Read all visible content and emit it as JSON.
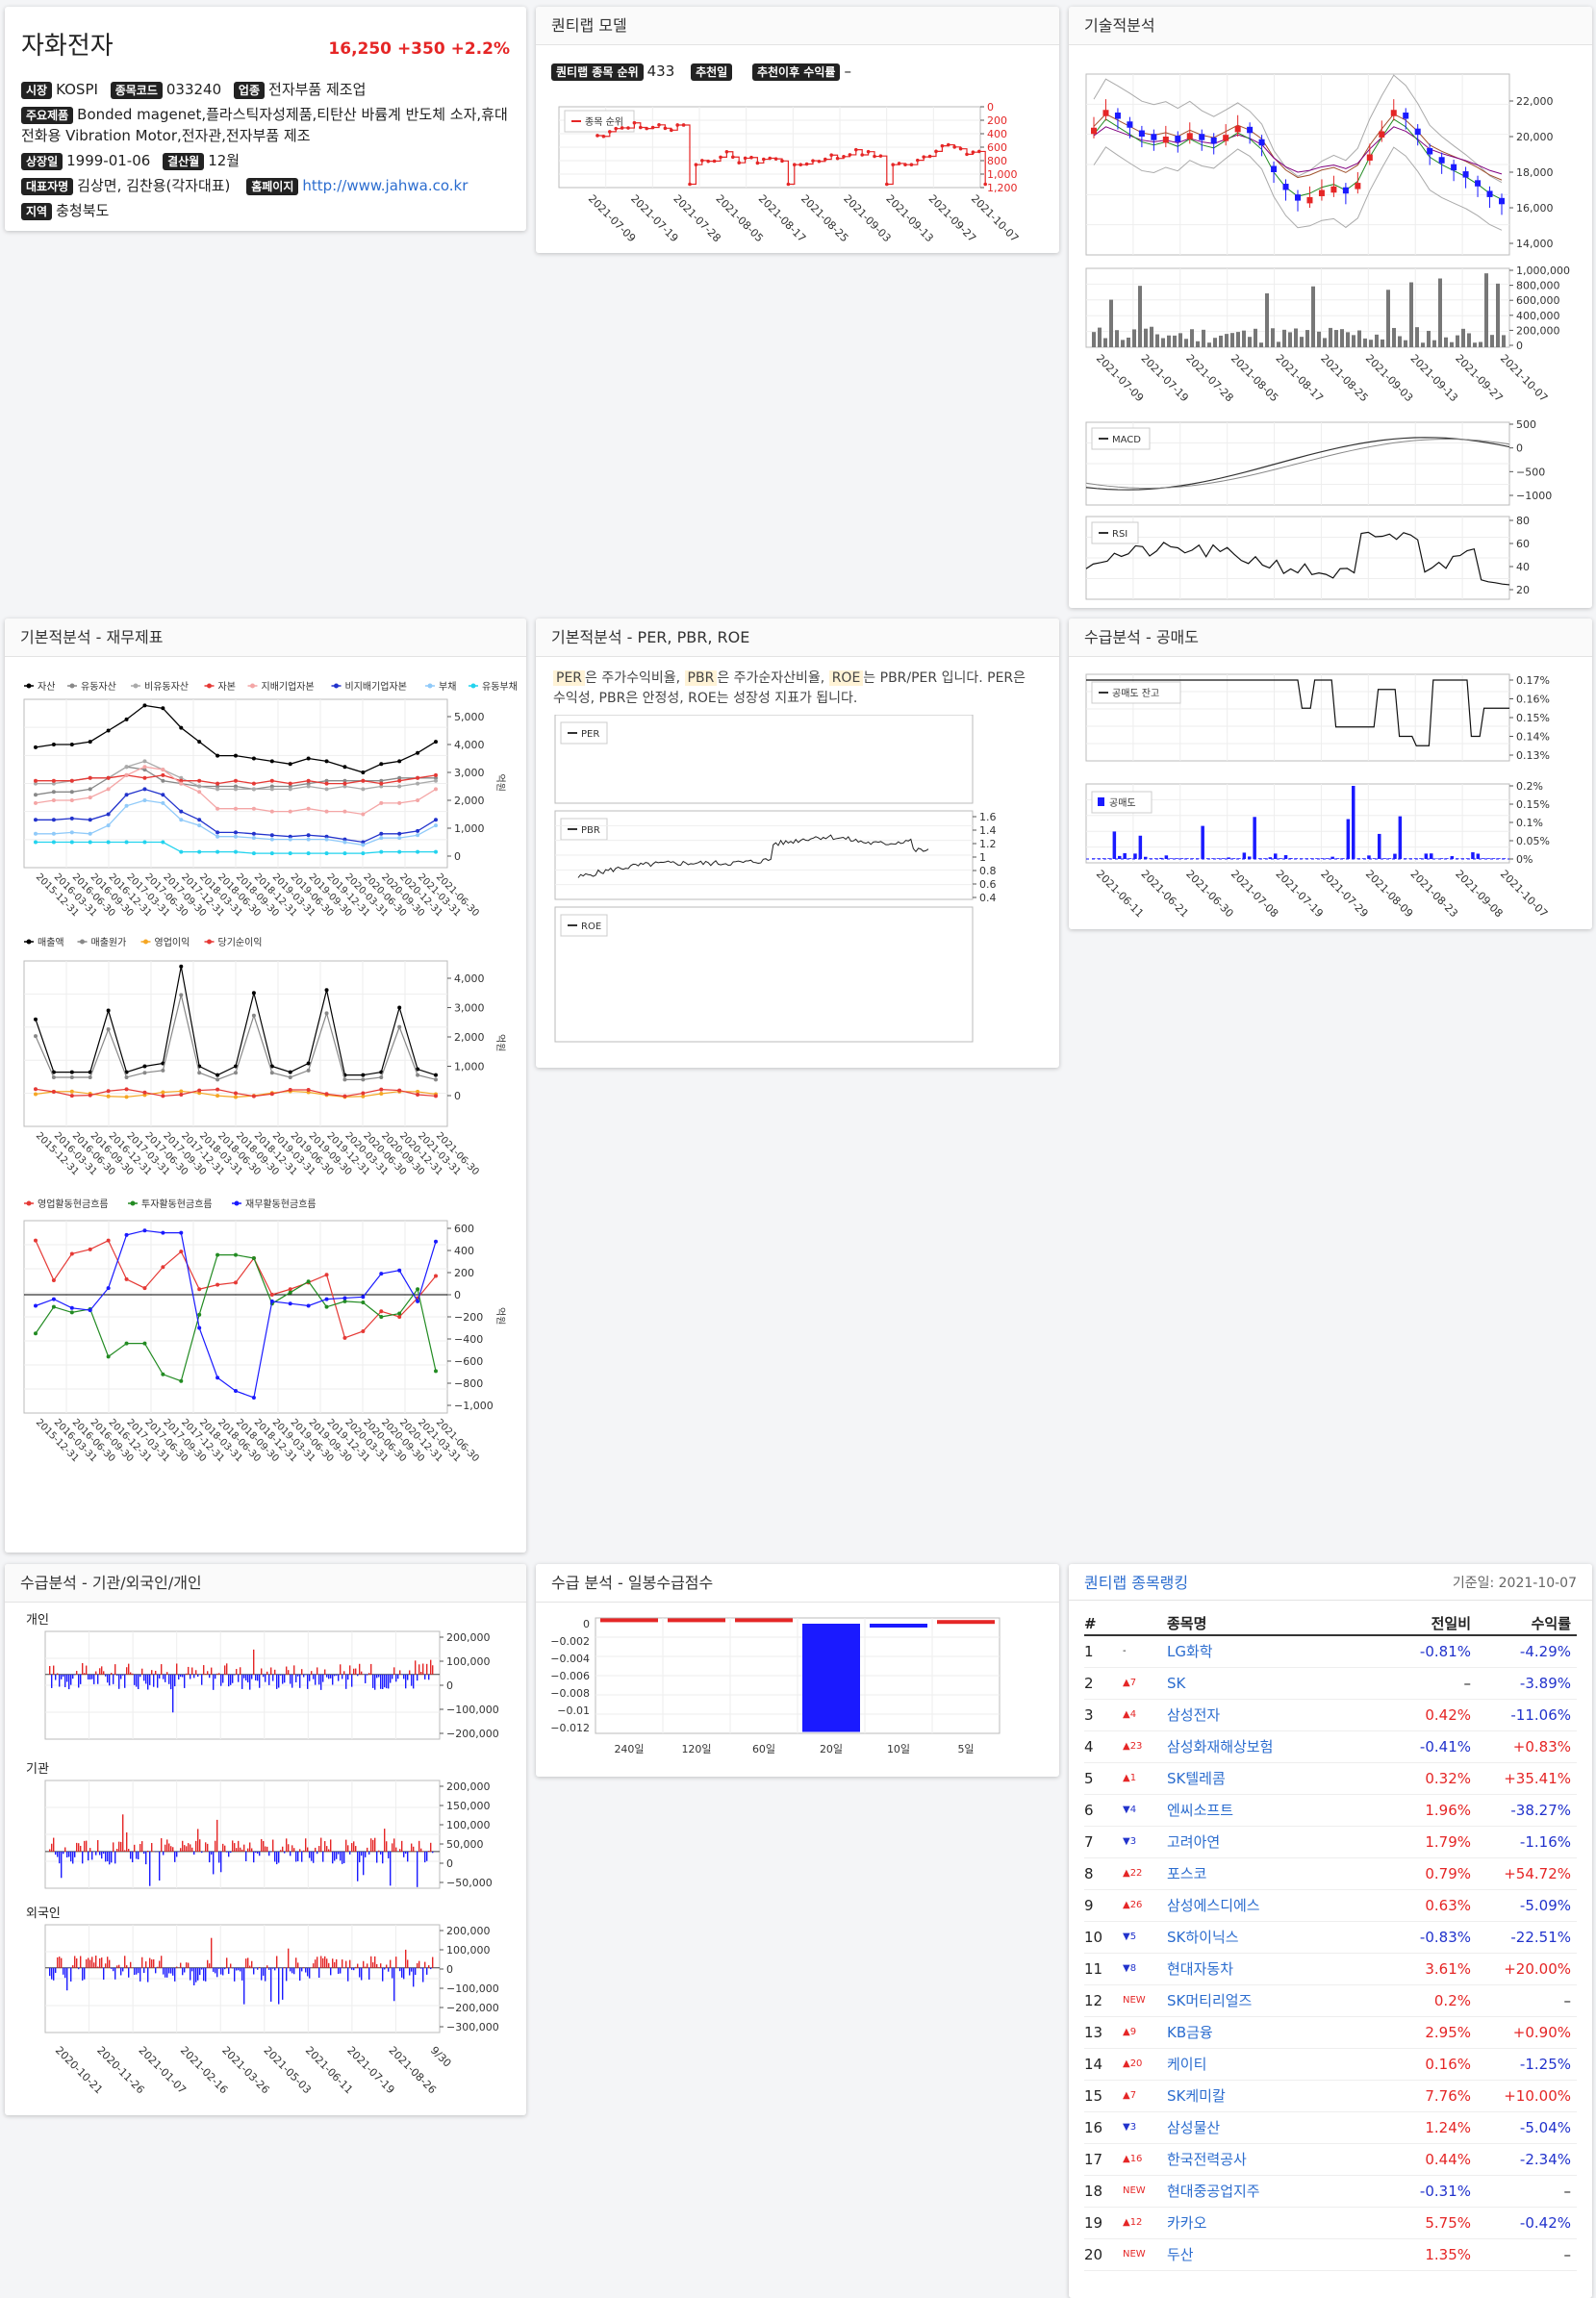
{
  "stock": {
    "name": "자화전자",
    "price": "16,250",
    "change": "+350",
    "change_pct": "+2.2%",
    "market_label": "시장",
    "market": "KOSPI",
    "code_label": "종목코드",
    "code": "033240",
    "industry_label": "업종",
    "industry": "전자부품 제조업",
    "products_label": "주요제품",
    "products": "Bonded magenet,플라스틱자성제품,티탄산 바륨계 반도체 소자,휴대전화용 Vibration Motor,전자관,전자부품 제조",
    "listed_label": "상장일",
    "listed": "1999-01-06",
    "fiscal_label": "결산월",
    "fiscal": "12월",
    "ceo_label": "대표자명",
    "ceo": "김상면, 김찬용(각자대표)",
    "homepage_label": "홈페이지",
    "homepage": "http://www.jahwa.co.kr",
    "region_label": "지역",
    "region": "충청북도"
  },
  "quant_model": {
    "title": "퀀티랩 모델",
    "rank_label": "퀀티랩 종목 순위",
    "rank": "433",
    "rec_label": "추천일",
    "rec_value": "",
    "ret_label": "추천이후 수익률",
    "ret_value": "–",
    "legend": "종목 순위",
    "y_ticks": [
      "0",
      "200",
      "400",
      "600",
      "800",
      "1,000",
      "1,200"
    ],
    "dates": [
      "2021-07-09",
      "2021-07-19",
      "2021-07-28",
      "2021-08-05",
      "2021-08-17",
      "2021-08-25",
      "2021-09-03",
      "2021-09-13",
      "2021-09-27",
      "2021-10-07"
    ]
  },
  "tech": {
    "title": "기술적분석",
    "price_ticks": [
      "22,000",
      "20,000",
      "18,000",
      "16,000",
      "14,000"
    ],
    "vol_ticks": [
      "1,000,000",
      "800,000",
      "600,000",
      "400,000",
      "200,000",
      "0"
    ],
    "dates": [
      "2021-07-09",
      "2021-07-19",
      "2021-07-28",
      "2021-08-05",
      "2021-08-17",
      "2021-08-25",
      "2021-09-03",
      "2021-09-13",
      "2021-09-27",
      "2021-10-07"
    ],
    "macd_label": "MACD",
    "macd_ticks": [
      "500",
      "0",
      "−500",
      "−1000"
    ],
    "rsi_label": "RSI",
    "rsi_ticks": [
      "80",
      "60",
      "40",
      "20"
    ]
  },
  "fin": {
    "title": "기본적분석 - 재무제표",
    "legend1": [
      "자산",
      "유동자산",
      "비유동자산",
      "자본",
      "지배기업자본",
      "비지배기업자본",
      "부채",
      "유동부채"
    ],
    "legend1_colors": [
      "#000000",
      "#888888",
      "#aaaaaa",
      "#e53935",
      "#f4a6a6",
      "#2233cc",
      "#90caf9",
      "#22d3ee"
    ],
    "ticks1": [
      "5,000",
      "4,000",
      "3,000",
      "2,000",
      "1,000",
      "0"
    ],
    "legend2": [
      "매출액",
      "매출원가",
      "영업이익",
      "당기순이익"
    ],
    "legend2_colors": [
      "#000000",
      "#888888",
      "#f5a623",
      "#e53935"
    ],
    "ticks2": [
      "4,000",
      "3,000",
      "2,000",
      "1,000",
      "0"
    ],
    "legend3": [
      "영업활동현금흐름",
      "투자활동현금흐름",
      "재무활동현금흐름"
    ],
    "legend3_colors": [
      "#e53935",
      "#228b22",
      "#1a1aff"
    ],
    "ticks3": [
      "600",
      "400",
      "200",
      "0",
      "−200",
      "−400",
      "−600",
      "−800",
      "−1,000"
    ],
    "unit": "억원",
    "dates": [
      "2015-12-31",
      "2016-03-31",
      "2016-06-30",
      "2016-09-30",
      "2016-12-31",
      "2017-03-31",
      "2017-06-30",
      "2017-09-30",
      "2017-12-31",
      "2018-03-31",
      "2018-06-30",
      "2018-09-30",
      "2018-12-31",
      "2019-03-31",
      "2019-06-30",
      "2019-09-30",
      "2019-12-31",
      "2020-03-31",
      "2020-06-30",
      "2020-09-30",
      "2020-12-31",
      "2021-03-31",
      "2021-06-30"
    ]
  },
  "per": {
    "title": "기본적분석 - PER, PBR, ROE",
    "desc": [
      "PER",
      "은 주가수익비율, ",
      "PBR",
      "은 주가순자산비율, ",
      "ROE",
      "는 PBR/PER 입니다. PER은 수익성, PBR은 안정성, ROE는 성장성 지표가 됩니다."
    ],
    "per_label": "PER",
    "pbr_label": "PBR",
    "roe_label": "ROE",
    "pbr_ticks": [
      "1.6",
      "1.4",
      "1.2",
      "1",
      "0.8",
      "0.6",
      "0.4"
    ]
  },
  "short": {
    "title": "수급분석 - 공매도",
    "balance_label": "공매도 잔고",
    "balance_ticks": [
      "0.17%",
      "0.16%",
      "0.15%",
      "0.14%",
      "0.13%"
    ],
    "sell_label": "공매도",
    "sell_ticks": [
      "0.2%",
      "0.15%",
      "0.1%",
      "0.05%",
      "0%"
    ],
    "dates": [
      "2021-06-11",
      "2021-06-21",
      "2021-06-30",
      "2021-07-08",
      "2021-07-19",
      "2021-07-29",
      "2021-08-09",
      "2021-08-23",
      "2021-09-08",
      "2021-10-07"
    ]
  },
  "flow": {
    "title": "수급분석 - 기관/외국인/개인",
    "individual": {
      "label": "개인",
      "ticks": [
        "200,000",
        "100,000",
        "0",
        "−100,000",
        "−200,000"
      ]
    },
    "institution": {
      "label": "기관",
      "ticks": [
        "200,000",
        "150,000",
        "100,000",
        "50,000",
        "0",
        "−50,000"
      ]
    },
    "foreign": {
      "label": "외국인",
      "ticks": [
        "200,000",
        "100,000",
        "0",
        "−100,000",
        "−200,000",
        "−300,000"
      ]
    },
    "dates": [
      "2020-10-21",
      "2020-11-26",
      "2021-01-07",
      "2021-02-16",
      "2021-03-26",
      "2021-05-03",
      "2021-06-11",
      "2021-07-19",
      "2021-08-26",
      "9/30"
    ]
  },
  "daily": {
    "title": "수급 분석 - 일봉수급점수",
    "ticks": [
      "0",
      "−0.002",
      "−0.004",
      "−0.006",
      "−0.008",
      "−0.01",
      "−0.012"
    ],
    "chart_data": {
      "type": "bar",
      "categories": [
        "240일",
        "120일",
        "60일",
        "20일",
        "10일",
        "5일"
      ],
      "values": [
        0.0004,
        0.0004,
        0.0004,
        -0.0125,
        -0.0004,
        0.0002
      ]
    }
  },
  "ranking": {
    "title": "퀀티랩 종목랭킹",
    "base_date": "기준일: 2021-10-07",
    "headers": [
      "#",
      "종목명",
      "전일비",
      "수익률"
    ],
    "rows": [
      [
        "1",
        "-",
        "LG화학",
        "-0.81%",
        "-4.29%"
      ],
      [
        "2",
        "▲7",
        "SK",
        "–",
        "-3.89%"
      ],
      [
        "3",
        "▲4",
        "삼성전자",
        "0.42%",
        "-11.06%"
      ],
      [
        "4",
        "▲23",
        "삼성화재해상보험",
        "-0.41%",
        "+0.83%"
      ],
      [
        "5",
        "▲1",
        "SK텔레콤",
        "0.32%",
        "+35.41%"
      ],
      [
        "6",
        "▼4",
        "엔씨소프트",
        "1.96%",
        "-38.27%"
      ],
      [
        "7",
        "▼3",
        "고려아연",
        "1.79%",
        "-1.16%"
      ],
      [
        "8",
        "▲22",
        "포스코",
        "0.79%",
        "+54.72%"
      ],
      [
        "9",
        "▲26",
        "삼성에스디에스",
        "0.63%",
        "-5.09%"
      ],
      [
        "10",
        "▼5",
        "SK하이닉스",
        "-0.83%",
        "-22.51%"
      ],
      [
        "11",
        "▼8",
        "현대자동차",
        "3.61%",
        "+20.00%"
      ],
      [
        "12",
        "NEW",
        "SK머티리얼즈",
        "0.2%",
        "–"
      ],
      [
        "13",
        "▲9",
        "KB금융",
        "2.95%",
        "+0.90%"
      ],
      [
        "14",
        "▲20",
        "케이티",
        "0.16%",
        "-1.25%"
      ],
      [
        "15",
        "▲7",
        "SK케미칼",
        "7.76%",
        "+10.00%"
      ],
      [
        "16",
        "▼3",
        "삼성물산",
        "1.24%",
        "-5.04%"
      ],
      [
        "17",
        "▲16",
        "한국전력공사",
        "0.44%",
        "-2.34%"
      ],
      [
        "18",
        "NEW",
        "현대중공업지주",
        "-0.31%",
        "–"
      ],
      [
        "19",
        "▲12",
        "카카오",
        "5.75%",
        "-0.42%"
      ],
      [
        "20",
        "NEW",
        "두산",
        "1.35%",
        "–"
      ]
    ]
  }
}
